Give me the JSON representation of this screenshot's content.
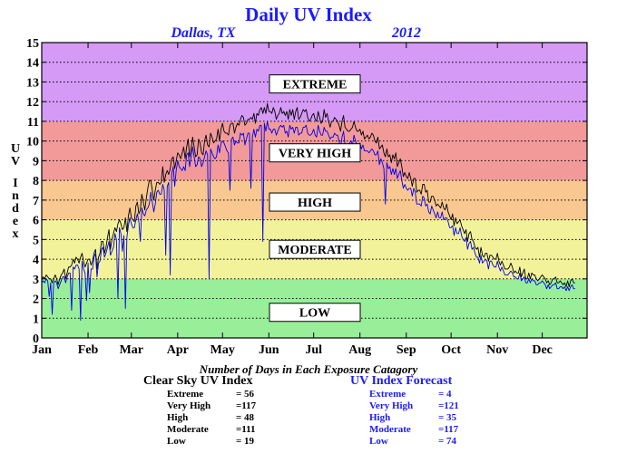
{
  "chart_data": {
    "type": "line",
    "title": "Daily UV Index",
    "subtitle_location": "Dallas, TX",
    "subtitle_year": "2012",
    "ylabel": "UV Index",
    "ylim": [
      0,
      15
    ],
    "yticks": [
      "0",
      "1",
      "2",
      "3",
      "4",
      "5",
      "6",
      "7",
      "8",
      "9",
      "10",
      "11",
      "12",
      "13",
      "14",
      "15"
    ],
    "xlim": [
      1,
      366
    ],
    "month_ticks": [
      {
        "label": "Jan",
        "day": 1
      },
      {
        "label": "Feb",
        "day": 32
      },
      {
        "label": "Mar",
        "day": 61
      },
      {
        "label": "Apr",
        "day": 92
      },
      {
        "label": "May",
        "day": 122
      },
      {
        "label": "Jun",
        "day": 153
      },
      {
        "label": "Jul",
        "day": 183
      },
      {
        "label": "Aug",
        "day": 214
      },
      {
        "label": "Sep",
        "day": 245
      },
      {
        "label": "Oct",
        "day": 275
      },
      {
        "label": "Nov",
        "day": 306
      },
      {
        "label": "Dec",
        "day": 336
      }
    ],
    "grid": "horizontal-dotted",
    "bands": [
      {
        "name": "LOW",
        "from": 0,
        "to": 3,
        "color": "#99ee99",
        "label_at": 1.3
      },
      {
        "name": "MODERATE",
        "from": 3,
        "to": 6,
        "color": "#f2f29a",
        "label_at": 4.5
      },
      {
        "name": "HIGH",
        "from": 6,
        "to": 8,
        "color": "#f8c890",
        "label_at": 6.9
      },
      {
        "name": "VERY HIGH",
        "from": 8,
        "to": 11,
        "color": "#f29a9a",
        "label_at": 9.4
      },
      {
        "name": "EXTREME",
        "from": 11,
        "to": 15,
        "color": "#d49af5",
        "label_at": 12.9
      }
    ],
    "series": [
      {
        "key": "clear_sky",
        "color": "#000000",
        "values": [
          3.0,
          3.1,
          3.0,
          3.2,
          3.1,
          3.0,
          3.0,
          2.8,
          3.0,
          3.2,
          3.0,
          2.7,
          3.0,
          3.2,
          3.3,
          3.5,
          3.0,
          3.3,
          3.6,
          3.6,
          3.7,
          4.0,
          3.8,
          4.1,
          4.0,
          3.8,
          4.1,
          4.3,
          3.9,
          3.6,
          3.8,
          4.0,
          4.0,
          3.7,
          3.9,
          4.3,
          4.5,
          3.5,
          4.1,
          4.3,
          4.9,
          4.9,
          4.3,
          4.6,
          5.1,
          5.5,
          4.5,
          5.0,
          5.3,
          5.6,
          5.4,
          5.8,
          6.0,
          5.8,
          5.5,
          5.6,
          6.1,
          5.4,
          6.2,
          6.6,
          6.1,
          6.0,
          5.9,
          6.7,
          6.9,
          6.3,
          6.5,
          7.3,
          6.9,
          6.5,
          7.1,
          7.6,
          8.0,
          8.0,
          7.5,
          7.0,
          7.5,
          7.9,
          7.9,
          7.8,
          7.9,
          8.7,
          7.9,
          8.3,
          8.5,
          8.3,
          8.6,
          9.1,
          9.2,
          8.6,
          9.0,
          9.4,
          9.3,
          9.1,
          9.4,
          9.7,
          9.1,
          9.7,
          10.1,
          9.2,
          9.6,
          10.2,
          9.7,
          9.2,
          9.3,
          10.1,
          9.9,
          9.4,
          9.3,
          10.0,
          10.3,
          9.8,
          9.7,
          10.4,
          10.2,
          9.9,
          10.0,
          10.1,
          10.6,
          10.0,
          10.6,
          10.9,
          10.5,
          10.4,
          10.4,
          10.3,
          10.8,
          10.9,
          10.9,
          10.4,
          10.7,
          10.9,
          10.8,
          11.1,
          11.3,
          11.2,
          10.8,
          10.9,
          11.1,
          11.1,
          11.2,
          11.1,
          11.4,
          10.9,
          11.4,
          11.3,
          11.6,
          11.7,
          11.4,
          11.7,
          11.4,
          11.9,
          11.5,
          11.5,
          11.4,
          11.7,
          11.5,
          11.1,
          11.3,
          11.4,
          11.7,
          11.4,
          11.5,
          11.3,
          11.5,
          11.1,
          11.6,
          11.3,
          11.6,
          11.1,
          11.5,
          11.7,
          11.1,
          11.2,
          11.4,
          11.6,
          11.5,
          11.6,
          11.2,
          11.0,
          11.1,
          11.3,
          11.4,
          11.1,
          11.0,
          11.5,
          11.2,
          10.9,
          11.0,
          11.6,
          11.2,
          11.4,
          11.0,
          10.7,
          11.0,
          11.0,
          11.2,
          11.1,
          11.0,
          10.8,
          10.5,
          11.0,
          11.3,
          10.7,
          10.6,
          10.5,
          10.5,
          10.6,
          10.7,
          11.0,
          10.7,
          10.5,
          10.5,
          10.6,
          10.3,
          10.5,
          10.1,
          10.2,
          10.3,
          10.1,
          10.2,
          10.4,
          10.3,
          10.0,
          9.9,
          10.2,
          9.6,
          9.7,
          9.8,
          9.4,
          9.2,
          9.6,
          9.2,
          9.3,
          8.9,
          9.3,
          9.1,
          9.4,
          8.7,
          8.9,
          9.1,
          8.7,
          8.2,
          8.4,
          8.2,
          8.1,
          8.4,
          8.1,
          7.7,
          8.1,
          8.1,
          7.4,
          7.5,
          7.5,
          7.3,
          7.8,
          7.8,
          7.4,
          7.5,
          6.9,
          6.9,
          7.2,
          7.2,
          7.0,
          6.7,
          6.8,
          6.7,
          6.6,
          6.9,
          6.6,
          6.5,
          6.8,
          6.4,
          6.2,
          6.0,
          6.3,
          5.7,
          6.1,
          5.8,
          5.9,
          6.0,
          5.7,
          5.5,
          5.3,
          5.5,
          4.9,
          5.3,
          5.4,
          5.0,
          4.9,
          4.6,
          4.5,
          4.6,
          4.1,
          4.6,
          4.2,
          4.1,
          4.3,
          4.3,
          3.9,
          4.2,
          4.2,
          4.1,
          4.0,
          4.0,
          4.3,
          3.9,
          3.7,
          3.9,
          3.7,
          3.5,
          3.5,
          3.5,
          3.6,
          3.8,
          3.6,
          3.3,
          3.4,
          3.3,
          3.3,
          3.6,
          3.1,
          3.3,
          3.5,
          3.0,
          3.0,
          3.3,
          3.0,
          3.3,
          3.2,
          3.2,
          3.0,
          2.9,
          3.0,
          3.1,
          3.2,
          3.1,
          3.0,
          2.8,
          2.9,
          2.7,
          2.8,
          3.0,
          3.0,
          3.1,
          2.8,
          2.8,
          2.9,
          2.8,
          2.7,
          2.8,
          2.6,
          2.9,
          2.6,
          2.9,
          3.0,
          2.8,
          2.8
        ]
      },
      {
        "key": "forecast",
        "color": "#0000ee",
        "values": [
          2.8,
          2.9,
          2.8,
          3.0,
          2.9,
          2.1,
          2.8,
          1.2,
          2.8,
          2.9,
          2.8,
          2.5,
          2.7,
          2.9,
          3.1,
          3.1,
          2.8,
          3.1,
          3.3,
          3.3,
          1.4,
          3.6,
          3.5,
          3.7,
          3.7,
          3.5,
          0.9,
          3.9,
          3.5,
          3.3,
          1.9,
          3.8,
          2.3,
          3.5,
          3.5,
          4.1,
          4.3,
          3.1,
          3.8,
          3.9,
          4.5,
          4.6,
          4.1,
          4.3,
          4.6,
          4.9,
          4.2,
          4.4,
          4.6,
          5.3,
          5.0,
          2.0,
          5.6,
          5.3,
          4.4,
          5.2,
          1.5,
          5.1,
          5.7,
          6.1,
          5.8,
          5.6,
          5.6,
          6.0,
          6.3,
          5.9,
          4.9,
          6.6,
          6.3,
          6.2,
          6.5,
          6.6,
          6.8,
          7.4,
          6.9,
          6.4,
          6.8,
          7.4,
          7.5,
          7.3,
          7.3,
          7.8,
          7.5,
          4.2,
          7.7,
          7.9,
          3.2,
          8.3,
          8.7,
          7.7,
          8.5,
          9.0,
          8.7,
          8.6,
          8.5,
          8.7,
          8.5,
          9.3,
          9.4,
          8.7,
          9.2,
          9.7,
          9.2,
          8.7,
          8.8,
          9.2,
          9.1,
          8.7,
          8.9,
          9.2,
          9.5,
          9.3,
          3.0,
          9.6,
          9.4,
          9.2,
          9.1,
          9.2,
          9.8,
          9.4,
          9.9,
          10.0,
          9.9,
          9.7,
          9.5,
          9.4,
          7.5,
          10.1,
          10.2,
          9.8,
          10.0,
          9.9,
          9.9,
          10.4,
          10.3,
          10.4,
          9.8,
          10.1,
          10.4,
          10.4,
          7.6,
          10.2,
          10.6,
          10.2,
          10.6,
          10.5,
          10.8,
          10.8,
          4.9,
          10.9,
          10.5,
          11.0,
          10.6,
          10.6,
          10.4,
          10.6,
          10.6,
          10.3,
          10.5,
          10.7,
          10.8,
          10.7,
          10.8,
          10.4,
          10.5,
          10.2,
          10.8,
          10.6,
          10.7,
          10.4,
          10.7,
          10.7,
          10.3,
          10.4,
          10.4,
          10.7,
          10.7,
          10.8,
          10.4,
          10.3,
          10.3,
          10.4,
          10.6,
          10.3,
          10.2,
          10.8,
          10.5,
          10.3,
          10.3,
          10.7,
          10.5,
          10.5,
          10.3,
          10.1,
          10.2,
          10.2,
          10.4,
          10.3,
          10.3,
          10.0,
          9.6,
          10.2,
          10.5,
          9.8,
          9.8,
          9.6,
          9.9,
          10.0,
          9.8,
          10.3,
          10.0,
          9.8,
          9.8,
          9.9,
          9.6,
          9.8,
          9.5,
          9.5,
          9.5,
          9.4,
          9.5,
          9.6,
          9.5,
          9.3,
          9.3,
          9.5,
          8.8,
          9.1,
          8.9,
          8.6,
          6.8,
          8.9,
          8.6,
          8.7,
          8.3,
          8.6,
          8.3,
          8.6,
          8.1,
          8.3,
          8.5,
          8.0,
          7.6,
          7.8,
          7.6,
          7.5,
          7.6,
          7.6,
          7.2,
          7.6,
          7.4,
          6.8,
          6.8,
          6.8,
          6.7,
          7.2,
          7.1,
          6.7,
          6.8,
          6.4,
          6.3,
          6.7,
          6.5,
          6.3,
          6.1,
          6.4,
          6.1,
          6.1,
          6.4,
          6.0,
          6.1,
          6.1,
          5.9,
          5.6,
          5.6,
          5.7,
          5.2,
          5.6,
          5.3,
          5.3,
          5.6,
          5.2,
          5.0,
          4.9,
          5.1,
          4.5,
          4.8,
          4.9,
          4.5,
          4.6,
          4.3,
          4.1,
          4.1,
          3.8,
          4.2,
          3.8,
          3.9,
          4.0,
          3.9,
          3.5,
          3.9,
          3.9,
          3.7,
          3.6,
          3.6,
          3.9,
          3.6,
          3.4,
          3.6,
          3.4,
          3.2,
          3.2,
          3.2,
          3.3,
          3.4,
          3.3,
          3.1,
          3.1,
          3.0,
          3.0,
          3.3,
          2.9,
          3.0,
          3.1,
          2.8,
          2.8,
          3.0,
          2.8,
          3.0,
          2.9,
          2.9,
          2.7,
          2.7,
          2.8,
          2.8,
          2.9,
          2.8,
          2.7,
          2.5,
          2.7,
          2.5,
          2.6,
          2.7,
          2.7,
          2.8,
          2.5,
          2.5,
          2.6,
          2.6,
          2.5,
          2.6,
          2.4,
          2.6,
          2.4,
          2.6,
          2.7,
          2.5,
          2.5
        ]
      }
    ]
  },
  "stats": {
    "heading": "Number of Days in Each Exposure Catagory",
    "clear_sky": {
      "title": "Clear Sky UV Index",
      "rows": [
        {
          "label": "Extreme",
          "value": "= 56"
        },
        {
          "label": "Very High",
          "value": "=117"
        },
        {
          "label": "High",
          "value": "= 48"
        },
        {
          "label": "Moderate",
          "value": "=111"
        },
        {
          "label": "Low",
          "value": "= 19"
        }
      ]
    },
    "forecast": {
      "title": "UV Index Forecast",
      "rows": [
        {
          "label": "Extreme",
          "value": "= 4"
        },
        {
          "label": "Very High",
          "value": "=121"
        },
        {
          "label": "High",
          "value": "= 35"
        },
        {
          "label": "Moderate",
          "value": "=117"
        },
        {
          "label": "Low",
          "value": "= 74"
        }
      ]
    }
  }
}
